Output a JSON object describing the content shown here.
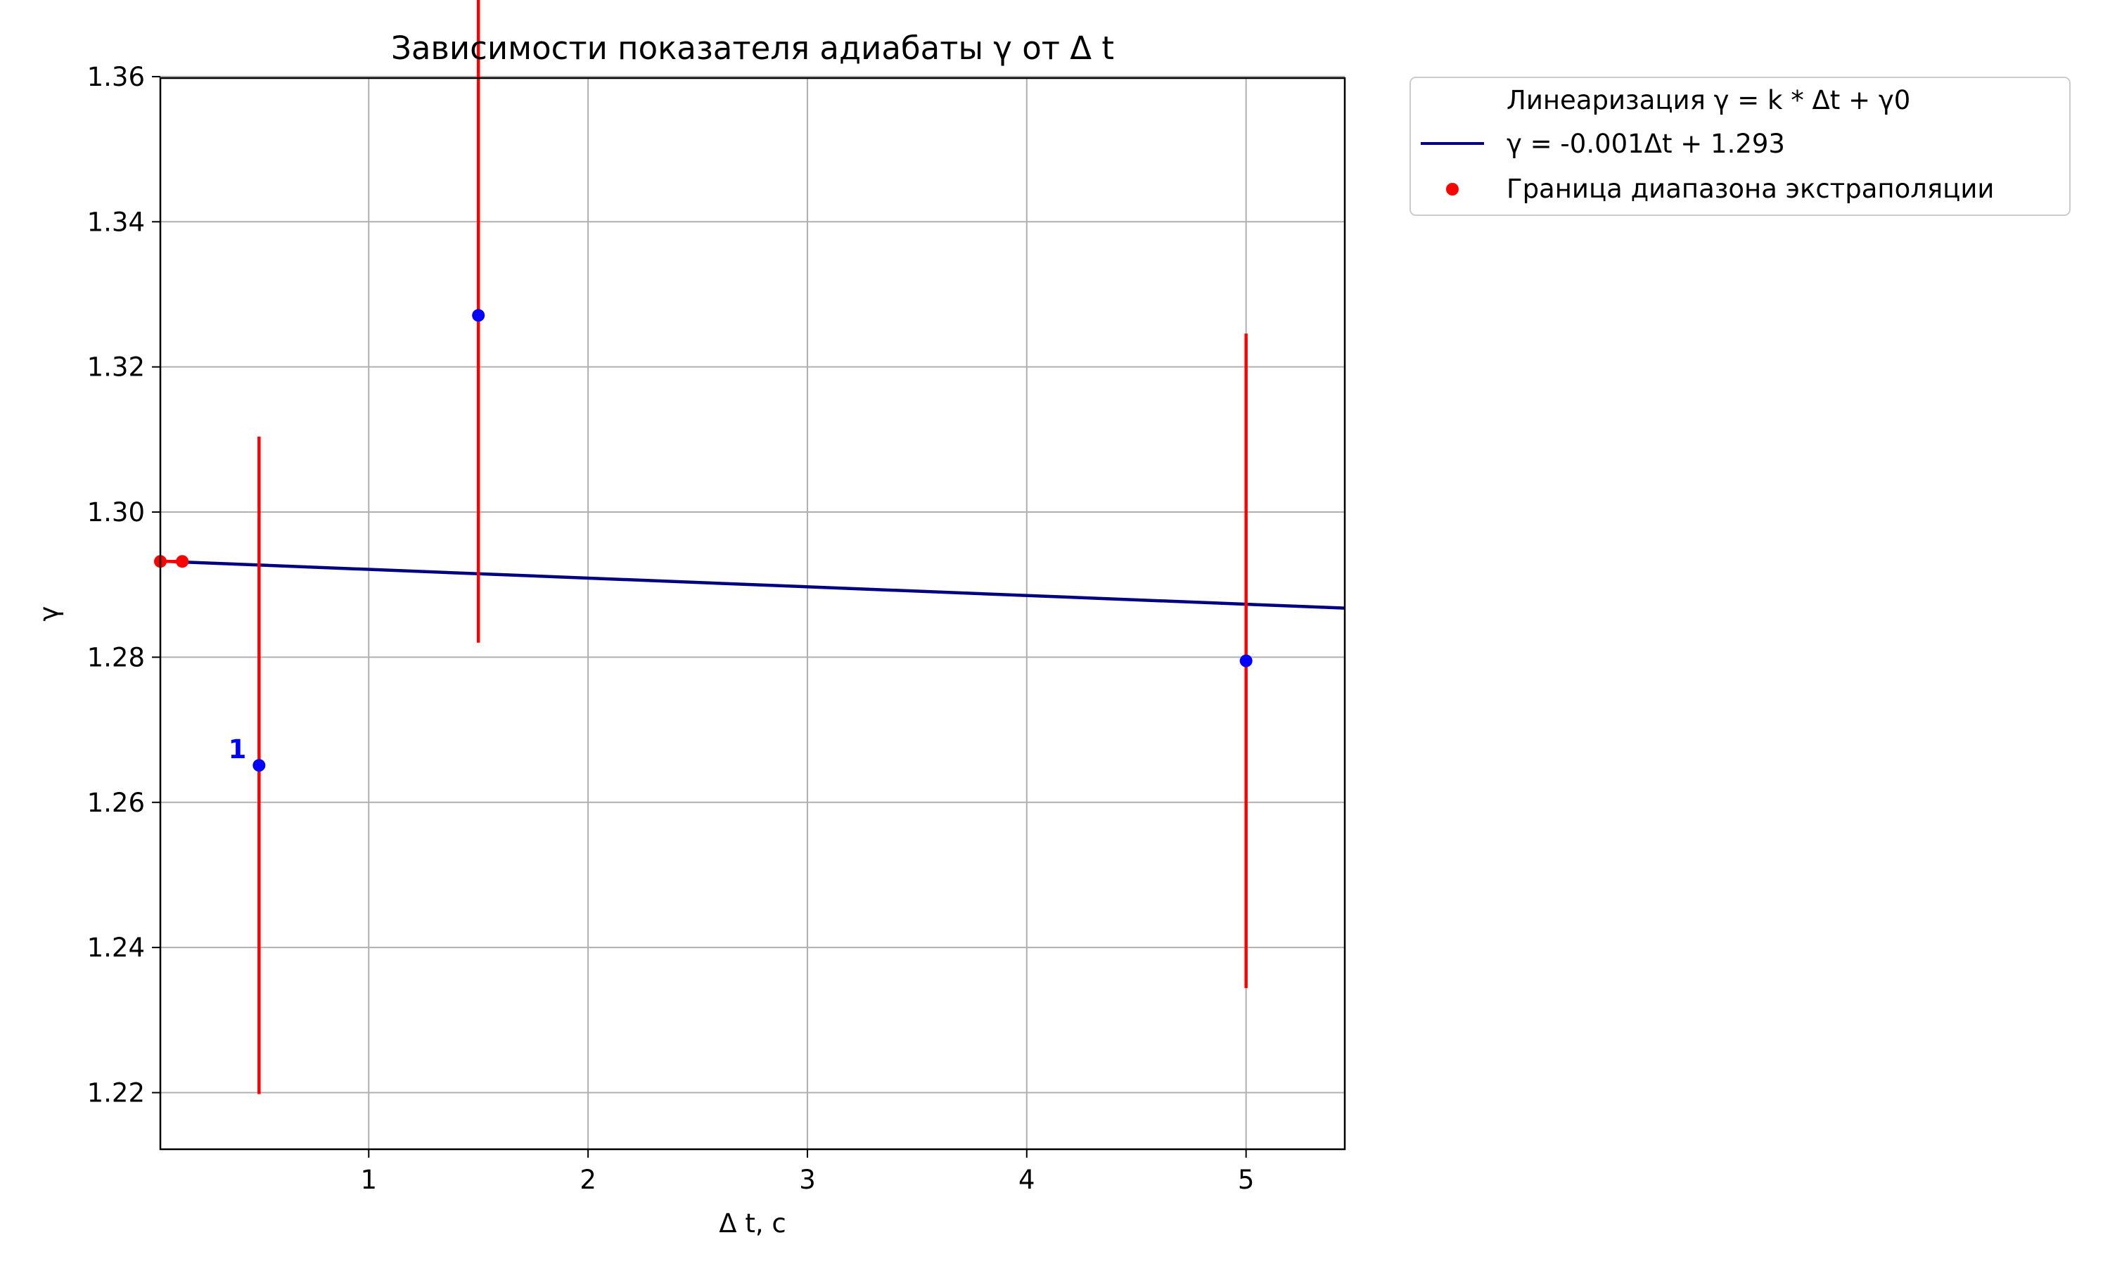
{
  "chart_data": {
    "type": "scatter",
    "title": "Зависимости показателя адиабаты γ от Δ t",
    "xlabel": "Δ t, с",
    "ylabel": "γ",
    "xlim": [
      0.05,
      5.45
    ],
    "ylim": [
      1.2122,
      1.3598
    ],
    "x_ticks": [
      1,
      2,
      3,
      4,
      5
    ],
    "y_ticks": [
      1.22,
      1.24,
      1.26,
      1.28,
      1.3,
      1.32,
      1.34,
      1.36
    ],
    "x_tick_labels": [
      "1",
      "2",
      "3",
      "4",
      "5"
    ],
    "y_tick_labels": [
      "1.22",
      "1.24",
      "1.26",
      "1.28",
      "1.30",
      "1.32",
      "1.34",
      "1.36"
    ],
    "grid": true,
    "legend_position": "outside-top-right",
    "series": [
      {
        "name": "Линеаризация γ = k * Δt + γ0",
        "kind": "legend-header"
      },
      {
        "name": "γ = -0.001Δt + 1.293",
        "kind": "line",
        "color": "#000080",
        "slope": -0.0012,
        "intercept": 1.2933,
        "x_range": [
          0.05,
          5.45
        ]
      },
      {
        "name": "Граница диапазона экстраполяции",
        "kind": "scatter",
        "color": "#ff0000",
        "points": [
          {
            "x": 0.05,
            "y": 1.2932
          },
          {
            "x": 0.15,
            "y": 1.2932
          }
        ]
      },
      {
        "kind": "errorbar",
        "color": "#0000ff",
        "error_color": "#ff0000",
        "points": [
          {
            "x": 0.5,
            "y": 1.2651,
            "yerr": 0.0453,
            "label": "1"
          },
          {
            "x": 1.5,
            "y": 1.3271,
            "yerr": 0.0451
          },
          {
            "x": 5.0,
            "y": 1.2795,
            "yerr": 0.0451
          }
        ]
      }
    ]
  }
}
